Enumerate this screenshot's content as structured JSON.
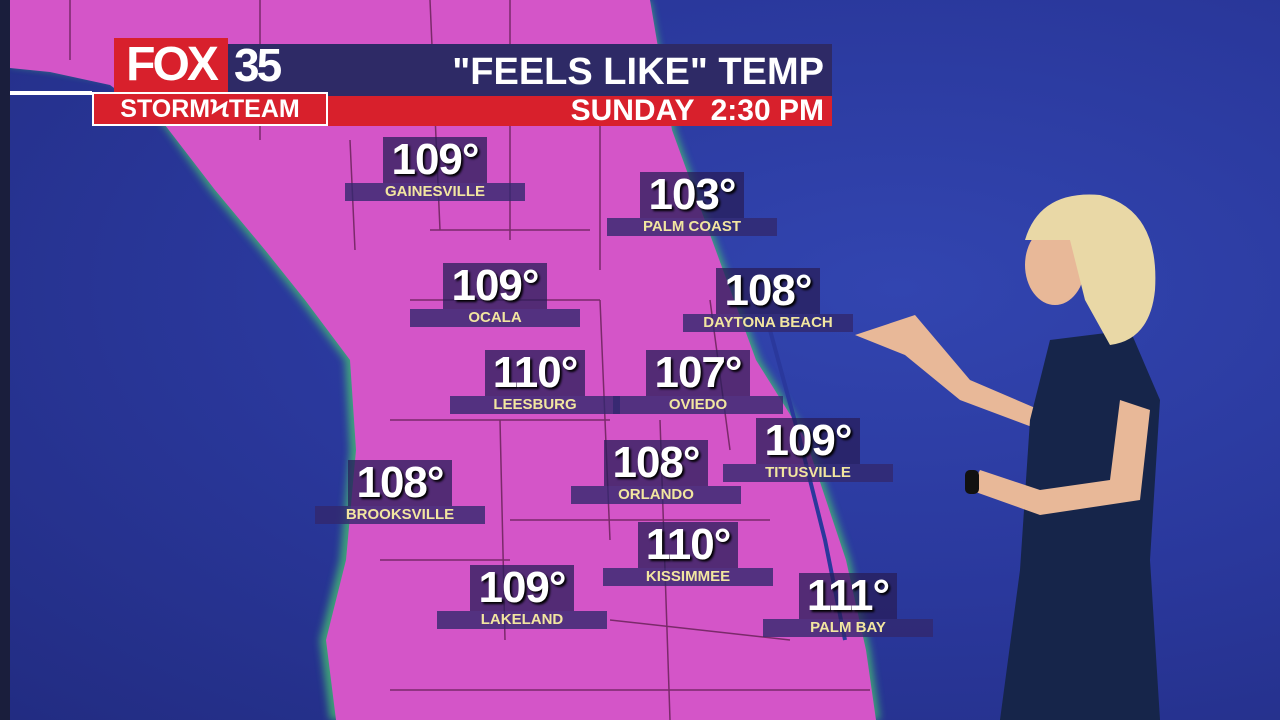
{
  "branding": {
    "logo_text": "FOX 35",
    "logo_sub": "STORM TEAM",
    "fox": "FOX",
    "number": "35",
    "storm_team": "STORMϞTEAM"
  },
  "header": {
    "title": "\"FEELS LIKE\" TEMP",
    "subtitle": "SUNDAY  2:30 PM"
  },
  "colors": {
    "land": "#d455c8",
    "water": "#2a389c",
    "banner_red": "#d8202c",
    "banner_navy": "#2e2a66",
    "city_text": "#f2e6a0"
  },
  "stations": [
    {
      "city": "GAINESVILLE",
      "temp": "109°"
    },
    {
      "city": "PALM COAST",
      "temp": "103°"
    },
    {
      "city": "OCALA",
      "temp": "109°"
    },
    {
      "city": "DAYTONA BEACH",
      "temp": "108°"
    },
    {
      "city": "LEESBURG",
      "temp": "110°"
    },
    {
      "city": "OVIEDO",
      "temp": "107°"
    },
    {
      "city": "TITUSVILLE",
      "temp": "109°"
    },
    {
      "city": "ORLANDO",
      "temp": "108°"
    },
    {
      "city": "BROOKSVILLE",
      "temp": "108°"
    },
    {
      "city": "KISSIMMEE",
      "temp": "110°"
    },
    {
      "city": "LAKELAND",
      "temp": "109°"
    },
    {
      "city": "PALM BAY",
      "temp": "111°"
    }
  ]
}
